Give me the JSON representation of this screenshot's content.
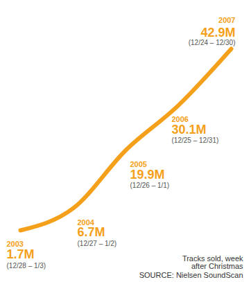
{
  "chart_data": {
    "type": "line",
    "categories": [
      "2003",
      "2004",
      "2005",
      "2006",
      "2007"
    ],
    "values": [
      1.7,
      6.7,
      19.9,
      30.1,
      42.9
    ],
    "value_labels": [
      "1.7M",
      "6.7M",
      "19.9M",
      "30.1M",
      "42.9M"
    ],
    "weeks": [
      "(12/28 – 1/3)",
      "(12/27 – 1/2)",
      "(12/26 – 1/1)",
      "(12/25 – 12/31)",
      "(12/24 – 12/30)"
    ],
    "color": "#f5a01a",
    "data_labels": true,
    "tick_labels": false,
    "caption": "Tracks sold, week after Christmas",
    "source": "SOURCE: Nielsen SoundScan"
  }
}
